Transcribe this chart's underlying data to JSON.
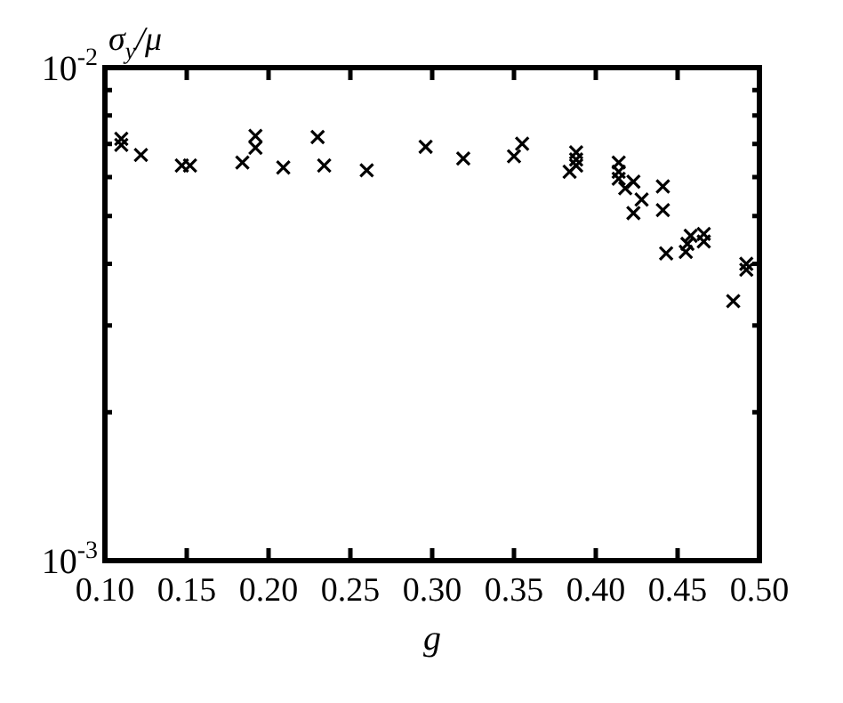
{
  "chart_data": {
    "type": "scatter",
    "xlabel": "g",
    "ylabel": "σ$_{y}$/μ",
    "log": "y",
    "marker": "cross",
    "grid": false,
    "legend": false,
    "xlim": [
      0.1,
      0.5
    ],
    "xticks": [
      {
        "value": 0.1,
        "label": "0.10"
      },
      {
        "value": 0.15,
        "label": "0.15"
      },
      {
        "value": 0.2,
        "label": "0.20"
      },
      {
        "value": 0.25,
        "label": "0.25"
      },
      {
        "value": 0.3,
        "label": "0.30"
      },
      {
        "value": 0.35,
        "label": "0.35"
      },
      {
        "value": 0.4,
        "label": "0.40"
      },
      {
        "value": 0.45,
        "label": "0.45"
      },
      {
        "value": 0.5,
        "label": "0.50"
      }
    ],
    "ylim": [
      0.001,
      0.01
    ],
    "yticks": [
      {
        "value": 0.001,
        "label": "10$^{-3}$"
      },
      {
        "value": 0.002,
        "label": null
      },
      {
        "value": 0.003,
        "label": null
      },
      {
        "value": 0.004,
        "label": null
      },
      {
        "value": 0.005,
        "label": null
      },
      {
        "value": 0.006,
        "label": null
      },
      {
        "value": 0.007,
        "label": null
      },
      {
        "value": 0.008,
        "label": null
      },
      {
        "value": 0.009,
        "label": null
      },
      {
        "value": 0.01,
        "label": "10$^{-2}$"
      }
    ],
    "series": [
      {
        "color": "#000000",
        "x": [
          0.11,
          0.11,
          0.122,
          0.147,
          0.152,
          0.184,
          0.192,
          0.192,
          0.209,
          0.23,
          0.234,
          0.26,
          0.296,
          0.319,
          0.35,
          0.355,
          0.384,
          0.388,
          0.388,
          0.388,
          0.414,
          0.414,
          0.414,
          0.418,
          0.423,
          0.423,
          0.428,
          0.441,
          0.441,
          0.443,
          0.455,
          0.456,
          0.458,
          0.466,
          0.466,
          0.484,
          0.492,
          0.492
        ],
        "values": [
          0.00717,
          0.00697,
          0.00665,
          0.00633,
          0.00633,
          0.00642,
          0.00727,
          0.00688,
          0.00627,
          0.00723,
          0.00633,
          0.00619,
          0.00691,
          0.00654,
          0.00661,
          0.00701,
          0.00615,
          0.00673,
          0.00651,
          0.00633,
          0.00642,
          0.00615,
          0.00595,
          0.00569,
          0.00587,
          0.00507,
          0.0054,
          0.00574,
          0.00514,
          0.0042,
          0.00423,
          0.00439,
          0.00456,
          0.0046,
          0.00444,
          0.00336,
          0.004,
          0.00389
        ]
      }
    ]
  }
}
